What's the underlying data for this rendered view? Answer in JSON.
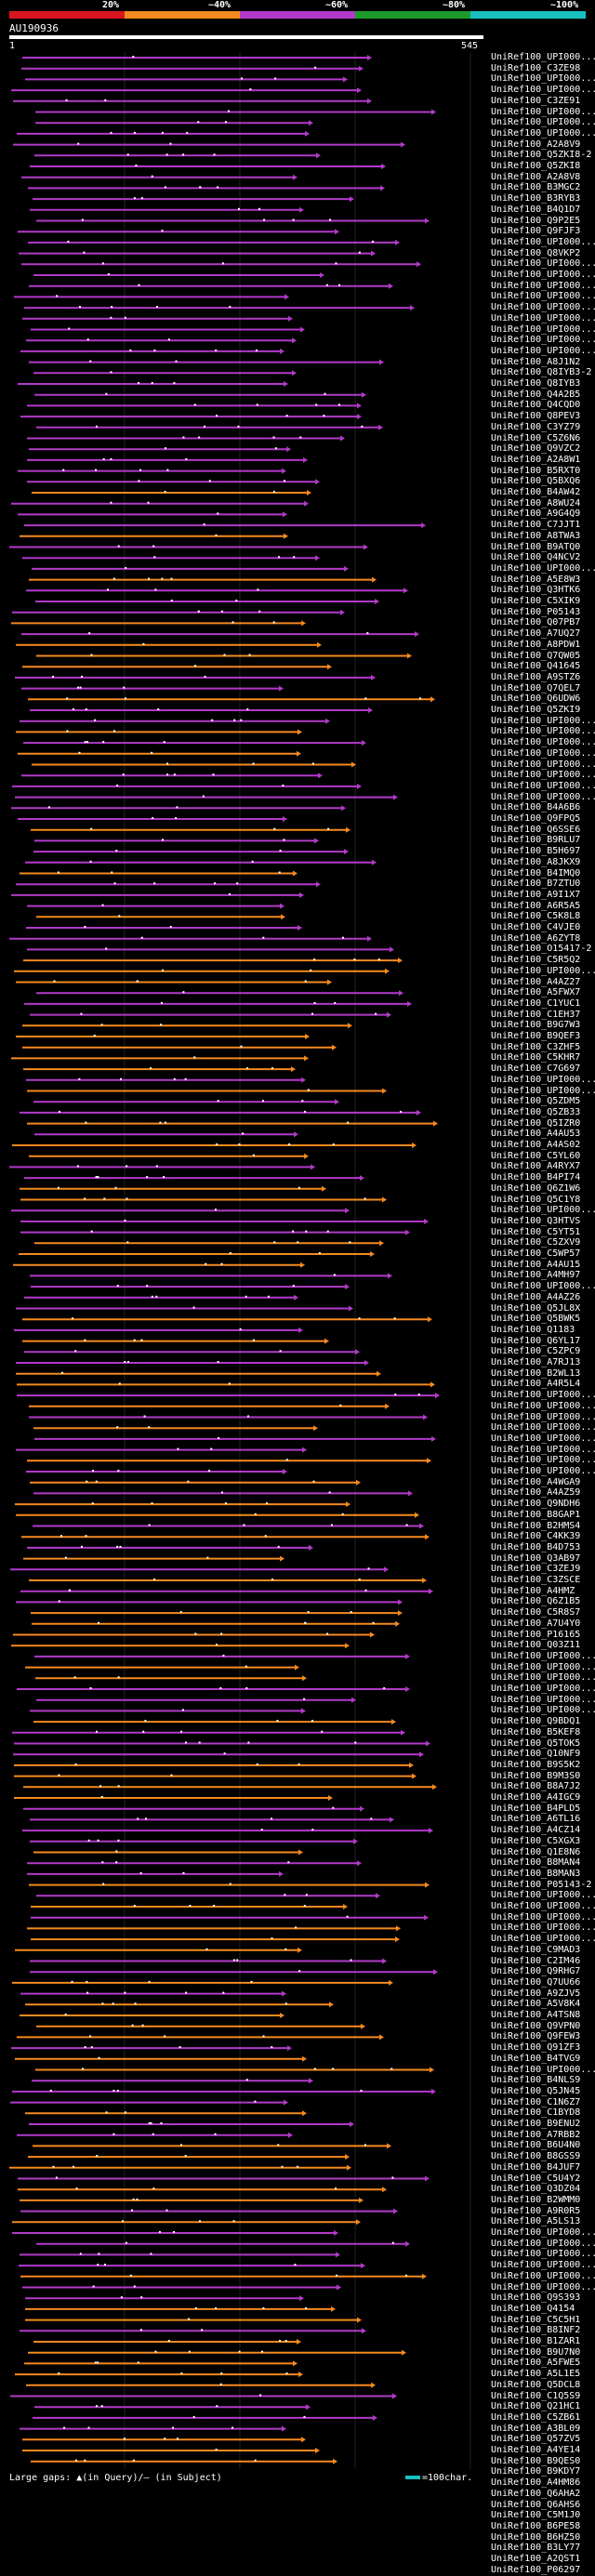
{
  "query": {
    "id": "AU190936",
    "start": "1",
    "end": "545"
  },
  "legend": {
    "thresholds": [
      "20%",
      "~40%",
      "~60%",
      "~80%",
      "~100%"
    ],
    "colors": [
      "#d9161f",
      "#f58a1f",
      "#b23ac9",
      "#1d9b2a",
      "#19c0c0"
    ]
  },
  "footer": {
    "gap_text": "Large gaps: ▲(in Query)/– (in Subject)",
    "key_text": "=100char."
  },
  "hits": [
    "UniRef100_UPI000...",
    "UniRef100_C3ZE98",
    "UniRef100_UPI000...",
    "UniRef100_UPI000...",
    "UniRef100_C3ZE91",
    "UniRef100_UPI000...",
    "UniRef100_UPI000...",
    "UniRef100_UPI000...",
    "UniRef100_A2A8V9",
    "UniRef100_Q5ZKI8-2",
    "UniRef100_Q5ZKI8",
    "UniRef100_A2A8V8",
    "UniRef100_B3MGC2",
    "UniRef100_B3RYB3",
    "UniRef100_B4Q1D7",
    "UniRef100_Q9P2E5",
    "UniRef100_Q9FJF3",
    "UniRef100_UPI000...",
    "UniRef100_Q8VKP2",
    "UniRef100_UPI000...",
    "UniRef100_UPI000...",
    "UniRef100_UPI000...",
    "UniRef100_UPI000...",
    "UniRef100_UPI000...",
    "UniRef100_UPI000...",
    "UniRef100_UPI000...",
    "UniRef100_UPI000...",
    "UniRef100_UPI000...",
    "UniRef100_A8J1N2",
    "UniRef100_Q8IYB3-2",
    "UniRef100_Q8IYB3",
    "UniRef100_Q4A2B5",
    "UniRef100_Q4CQD0",
    "UniRef100_Q8PEV3",
    "UniRef100_C3YZ79",
    "UniRef100_C5Z6N6",
    "UniRef100_Q9VZC2",
    "UniRef100_A2A8W1",
    "UniRef100_B5RXT0",
    "UniRef100_Q5BXQ6",
    "UniRef100_B4AW42",
    "UniRef100_A8WU24",
    "UniRef100_A9G4Q9",
    "UniRef100_C7JJT1",
    "UniRef100_A8TWA3",
    "UniRef100_B9ATQ0",
    "UniRef100_Q4NCV2",
    "UniRef100_UPI000...",
    "UniRef100_A5E8W3",
    "UniRef100_Q3HTK6",
    "UniRef100_C5XIK9",
    "UniRef100_P05143",
    "UniRef100_Q07PB7",
    "UniRef100_A7UQ27",
    "UniRef100_A8PDW1",
    "UniRef100_Q7QW05",
    "UniRef100_Q41645",
    "UniRef100_A9STZ6",
    "UniRef100_Q7QEL7",
    "UniRef100_Q6UDW6",
    "UniRef100_Q5ZKI9",
    "UniRef100_UPI000...",
    "UniRef100_UPI000...",
    "UniRef100_UPI000...",
    "UniRef100_UPI000...",
    "UniRef100_UPI000...",
    "UniRef100_UPI000...",
    "UniRef100_UPI000...",
    "UniRef100_UPI000...",
    "UniRef100_B4A6B6",
    "UniRef100_Q9FPQ5",
    "UniRef100_Q6SSE6",
    "UniRef100_B9RLU7",
    "UniRef100_B5H697",
    "UniRef100_A8JKX9",
    "UniRef100_B4IMQ0",
    "UniRef100_B7ZTU0",
    "UniRef100_A9I1X7",
    "UniRef100_A6R5A5",
    "UniRef100_C5K8L8",
    "UniRef100_C4VJE0",
    "UniRef100_A6ZYT8",
    "UniRef100_O15417-2",
    "UniRef100_C5R5Q2",
    "UniRef100_UPI000...",
    "UniRef100_A4AZ27",
    "UniRef100_A5FWX7",
    "UniRef100_C1YUC1",
    "UniRef100_C1EH37",
    "UniRef100_B9G7W3",
    "UniRef100_B9QEF3",
    "UniRef100_C3ZHF5",
    "UniRef100_C5KHR7",
    "UniRef100_C7G697",
    "UniRef100_UPI000...",
    "UniRef100_UPI000...",
    "UniRef100_Q5ZDM5",
    "UniRef100_Q5ZB33",
    "UniRef100_Q5IZR0",
    "UniRef100_A4AU53",
    "UniRef100_A4AS02",
    "UniRef100_C5YL60",
    "UniRef100_A4RYX7",
    "UniRef100_B4PI74",
    "UniRef100_Q6Z1W6",
    "UniRef100_Q5C1Y8",
    "UniRef100_UPI000...",
    "UniRef100_Q3HTVS",
    "UniRef100_C5YT51",
    "UniRef100_C5ZXV9",
    "UniRef100_C5WP57",
    "UniRef100_A4AU15",
    "UniRef100_A4MH97",
    "UniRef100_UPI000...",
    "UniRef100_A4AZ26",
    "UniRef100_Q5JL8X",
    "UniRef100_Q5BWK5",
    "UniRef100_Q1183",
    "UniRef100_Q6YL17",
    "UniRef100_C5ZPC9",
    "UniRef100_A7RJ13",
    "UniRef100_B2WL13",
    "UniRef100_A4R5L4",
    "UniRef100_UPI000...",
    "UniRef100_UPI000...",
    "UniRef100_UPI000...",
    "UniRef100_UPI000...",
    "UniRef100_UPI000...",
    "UniRef100_UPI000...",
    "UniRef100_UPI000...",
    "UniRef100_UPI000...",
    "UniRef100_A4WGA9",
    "UniRef100_A4AZ59",
    "UniRef100_Q9NDH6",
    "UniRef100_B8GAP1",
    "UniRef100_B2HMS4",
    "UniRef100_C4KK39",
    "UniRef100_B4D753",
    "UniRef100_Q3AB97",
    "UniRef100_C3ZEJ9",
    "UniRef100_C3ZSCE",
    "UniRef100_A4HMZ",
    "UniRef100_Q6Z1B5",
    "UniRef100_C5R8S7",
    "UniRef100_A7U4Y0",
    "UniRef100_P16165",
    "UniRef100_Q03Z11",
    "UniRef100_UPI000...",
    "UniRef100_UPI000...",
    "UniRef100_UPI000...",
    "UniRef100_UPI000...",
    "UniRef100_UPI000...",
    "UniRef100_UPI000...",
    "UniRef100_Q9BDQ1",
    "UniRef100_B5KEF8",
    "UniRef100_Q5TOK5",
    "UniRef100_Q10NF9",
    "UniRef100_B9S5K2",
    "UniRef100_B9M3S0",
    "UniRef100_B8A7J2",
    "UniRef100_A4IGC9",
    "UniRef100_B4PLD5",
    "UniRef100_A6TL16",
    "UniRef100_A4CZ14",
    "UniRef100_C5XGX3",
    "UniRef100_Q1E8N6",
    "UniRef100_B8MAN4",
    "UniRef100_B8MAN3",
    "UniRef100_P05143-2",
    "UniRef100_UPI000...",
    "UniRef100_UPI000...",
    "UniRef100_UPI000...",
    "UniRef100_UPI000...",
    "UniRef100_UPI000...",
    "UniRef100_C9MAD3",
    "UniRef100_C2IM46",
    "UniRef100_Q9RHG7",
    "UniRef100_Q7UU66",
    "UniRef100_A9ZJV5",
    "UniRef100_A5V8K4",
    "UniRef100_A4TSN8",
    "UniRef100_Q9VPN0",
    "UniRef100_Q9FEW3",
    "UniRef100_Q91ZF3",
    "UniRef100_B4TVG9",
    "UniRef100_UPI000...",
    "UniRef100_B4NLS9",
    "UniRef100_Q5JN45",
    "UniRef100_C1N6Z7",
    "UniRef100_C1BYD8",
    "UniRef100_B9ENU2",
    "UniRef100_A7RBB2",
    "UniRef100_B6U4N0",
    "UniRef100_B8GSS9",
    "UniRef100_B4JUF7",
    "UniRef100_C5U4Y2",
    "UniRef100_Q3DZ04",
    "UniRef100_B2WMM0",
    "UniRef100_A9R0R5",
    "UniRef100_A5LS13",
    "UniRef100_UPI000...",
    "UniRef100_UPI000...",
    "UniRef100_UPI000...",
    "UniRef100_UPI000...",
    "UniRef100_UPI000...",
    "UniRef100_UPI000...",
    "UniRef100_Q9S393",
    "UniRef100_Q4154",
    "UniRef100_C5C5H1",
    "UniRef100_B8INF2",
    "UniRef100_B1ZAR1",
    "UniRef100_B9U7N0",
    "UniRef100_A5FWE5",
    "UniRef100_A5L1E5",
    "UniRef100_Q5DCL8",
    "UniRef100_C1Q5S9",
    "UniRef100_Q21HC1",
    "UniRef100_C5ZB61",
    "UniRef100_A3BL09",
    "UniRef100_Q57ZV5",
    "UniRef100_A4YE14",
    "UniRef100_B9QES0",
    "UniRef100_B9KDY7",
    "UniRef100_A4HM86",
    "UniRef100_Q6AHA2",
    "UniRef100_Q6AHS6",
    "UniRef100_C5M1J0",
    "UniRef100_B6PE58",
    "UniRef100_B6HZ50",
    "UniRef100_B3LY77",
    "UniRef100_A2QST1",
    "UniRef100_P06297"
  ]
}
